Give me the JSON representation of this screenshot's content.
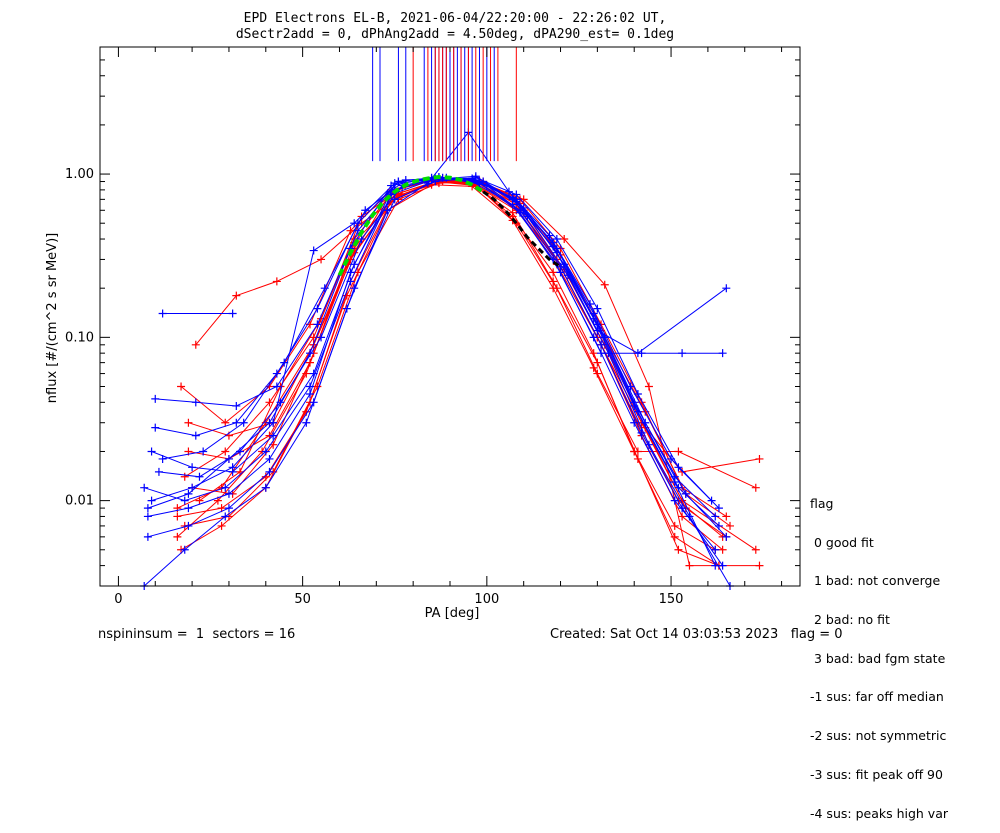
{
  "chart_data": {
    "type": "line",
    "title": "EPD Electrons EL-B, 2021-06-04/22:20:00 - 22:26:02 UT,",
    "subtitle": "dSectr2add = 0, dPhAng2add = 4.50deg, dPA290_est=   0.1deg",
    "xlabel": "PA [deg]",
    "ylabel": "nflux [#/(cm^2 s sr MeV)]",
    "xlim": [
      -5,
      185
    ],
    "ylim": [
      0.003,
      6.0
    ],
    "yscale": "log",
    "x_ticks": [
      0,
      50,
      100,
      150
    ],
    "y_ticks": [
      {
        "value": 0.01,
        "label": "0.01"
      },
      {
        "value": 0.1,
        "label": "0.10"
      },
      {
        "value": 1.0,
        "label": "1.00"
      }
    ],
    "grid": false,
    "series_colors": {
      "red": "#ff0000",
      "blue": "#0000ff",
      "fit_green": "#00dd00",
      "fit_black": "#000000"
    },
    "series": [
      {
        "color": "red",
        "x": [
          16,
          28,
          40,
          53,
          64,
          75,
          86,
          97,
          108,
          119,
          130,
          141,
          152,
          164
        ],
        "y": [
          0.009,
          0.012,
          0.03,
          0.09,
          0.35,
          0.75,
          0.9,
          0.85,
          0.6,
          0.3,
          0.1,
          0.03,
          0.01,
          0.006
        ]
      },
      {
        "color": "red",
        "x": [
          17,
          29,
          41,
          52,
          63,
          74,
          85,
          96,
          107,
          118,
          129,
          140,
          151,
          163
        ],
        "y": [
          0.05,
          0.03,
          0.05,
          0.12,
          0.45,
          0.8,
          0.92,
          0.88,
          0.55,
          0.25,
          0.08,
          0.02,
          0.006,
          0.004
        ]
      },
      {
        "color": "red",
        "x": [
          18,
          30,
          42,
          54,
          65,
          76,
          87,
          98,
          109,
          120,
          131,
          142,
          153,
          165
        ],
        "y": [
          0.007,
          0.008,
          0.015,
          0.05,
          0.25,
          0.7,
          0.88,
          0.9,
          0.7,
          0.35,
          0.12,
          0.04,
          0.012,
          0.008
        ]
      },
      {
        "color": "red",
        "x": [
          19,
          30,
          41,
          52,
          63,
          75,
          86,
          97,
          108,
          119,
          131,
          142,
          153,
          164
        ],
        "y": [
          0.02,
          0.018,
          0.025,
          0.07,
          0.3,
          0.72,
          0.9,
          0.86,
          0.62,
          0.28,
          0.09,
          0.025,
          0.008,
          0.005
        ]
      },
      {
        "color": "red",
        "x": [
          16,
          27,
          39,
          51,
          62,
          74,
          85,
          96,
          107,
          118,
          130,
          141,
          152,
          163
        ],
        "y": [
          0.006,
          0.01,
          0.02,
          0.06,
          0.28,
          0.78,
          0.93,
          0.87,
          0.58,
          0.22,
          0.07,
          0.018,
          0.005,
          0.004
        ]
      },
      {
        "color": "red",
        "x": [
          20,
          31,
          42,
          53,
          64,
          76,
          87,
          98,
          109,
          120,
          131,
          143,
          154,
          166
        ],
        "y": [
          0.012,
          0.011,
          0.022,
          0.08,
          0.38,
          0.74,
          0.89,
          0.91,
          0.66,
          0.32,
          0.11,
          0.035,
          0.011,
          0.007
        ]
      },
      {
        "color": "red",
        "x": [
          21,
          32,
          43,
          55,
          66,
          77,
          88,
          99,
          110,
          121,
          132,
          144,
          155,
          174
        ],
        "y": [
          0.09,
          0.18,
          0.22,
          0.3,
          0.5,
          0.75,
          0.9,
          0.88,
          0.7,
          0.4,
          0.21,
          0.05,
          0.004,
          0.004
        ]
      },
      {
        "color": "red",
        "x": [
          17,
          28,
          40,
          52,
          63,
          74,
          86,
          97,
          108,
          119,
          130,
          141,
          152,
          173
        ],
        "y": [
          0.005,
          0.007,
          0.012,
          0.04,
          0.22,
          0.68,
          0.9,
          0.86,
          0.5,
          0.2,
          0.06,
          0.02,
          0.02,
          0.012
        ]
      },
      {
        "color": "red",
        "x": [
          18,
          29,
          41,
          53,
          64,
          75,
          86,
          97,
          108,
          119,
          130,
          142,
          153,
          174
        ],
        "y": [
          0.014,
          0.02,
          0.04,
          0.1,
          0.4,
          0.8,
          0.92,
          0.9,
          0.65,
          0.3,
          0.1,
          0.03,
          0.015,
          0.018
        ]
      },
      {
        "color": "red",
        "x": [
          16,
          28,
          40,
          51,
          62,
          73,
          85,
          96,
          107,
          118,
          129,
          140,
          151,
          162
        ],
        "y": [
          0.008,
          0.009,
          0.014,
          0.035,
          0.18,
          0.6,
          0.86,
          0.84,
          0.52,
          0.2,
          0.065,
          0.02,
          0.007,
          0.005
        ]
      },
      {
        "color": "red",
        "x": [
          22,
          33,
          44,
          55,
          66,
          77,
          88,
          99,
          110,
          121,
          132,
          143,
          154,
          165
        ],
        "y": [
          0.01,
          0.015,
          0.05,
          0.13,
          0.55,
          0.82,
          0.94,
          0.9,
          0.6,
          0.26,
          0.09,
          0.028,
          0.009,
          0.006
        ]
      },
      {
        "color": "red",
        "x": [
          19,
          30,
          42,
          53,
          64,
          76,
          87,
          98,
          109,
          120,
          131,
          142,
          153,
          173
        ],
        "y": [
          0.03,
          0.025,
          0.03,
          0.09,
          0.33,
          0.76,
          0.91,
          0.87,
          0.6,
          0.27,
          0.09,
          0.03,
          0.01,
          0.005
        ]
      },
      {
        "color": "blue",
        "x": [
          8,
          19,
          30,
          41,
          52,
          63,
          74,
          85,
          96,
          107,
          118,
          129,
          140,
          151,
          162
        ],
        "y": [
          0.009,
          0.011,
          0.018,
          0.03,
          0.08,
          0.35,
          0.85,
          0.95,
          0.9,
          0.65,
          0.3,
          0.1,
          0.03,
          0.01,
          0.005
        ]
      },
      {
        "color": "blue",
        "x": [
          9,
          20,
          31,
          42,
          53,
          64,
          75,
          86,
          97,
          108,
          119,
          130,
          141,
          152,
          163
        ],
        "y": [
          0.02,
          0.016,
          0.015,
          0.025,
          0.06,
          0.28,
          0.8,
          0.94,
          0.92,
          0.7,
          0.35,
          0.12,
          0.035,
          0.012,
          0.007
        ]
      },
      {
        "color": "blue",
        "x": [
          12,
          31
        ],
        "y": [
          0.14,
          0.14
        ]
      },
      {
        "color": "blue",
        "x": [
          7,
          18,
          29,
          40,
          52,
          63,
          74,
          85,
          96,
          107,
          118,
          129,
          140,
          151,
          162
        ],
        "y": [
          0.012,
          0.01,
          0.012,
          0.02,
          0.05,
          0.22,
          0.75,
          0.92,
          0.93,
          0.72,
          0.38,
          0.14,
          0.04,
          0.014,
          0.008
        ]
      },
      {
        "color": "blue",
        "x": [
          10,
          21,
          32,
          43,
          54,
          65,
          76,
          87,
          98,
          109,
          120,
          131,
          142,
          153,
          164
        ],
        "y": [
          0.042,
          0.04,
          0.038,
          0.05,
          0.12,
          0.45,
          0.9,
          0.96,
          0.88,
          0.6,
          0.27,
          0.09,
          0.026,
          0.009,
          0.004
        ]
      },
      {
        "color": "blue",
        "x": [
          8,
          19,
          30,
          41,
          53,
          64,
          75,
          86,
          97,
          108,
          119,
          130,
          141,
          152,
          163
        ],
        "y": [
          0.006,
          0.007,
          0.009,
          0.015,
          0.04,
          0.2,
          0.7,
          0.9,
          0.95,
          0.75,
          0.4,
          0.15,
          0.045,
          0.016,
          0.009
        ]
      },
      {
        "color": "blue",
        "x": [
          11,
          22,
          33,
          44,
          55,
          66,
          77,
          88,
          99,
          110,
          121,
          132,
          143,
          154,
          165
        ],
        "y": [
          0.015,
          0.014,
          0.02,
          0.04,
          0.1,
          0.4,
          0.85,
          0.95,
          0.9,
          0.62,
          0.28,
          0.1,
          0.03,
          0.011,
          0.006
        ]
      },
      {
        "color": "blue",
        "x": [
          9,
          20,
          31,
          42,
          53,
          64,
          75,
          86,
          97,
          108,
          119,
          130,
          141,
          165
        ],
        "y": [
          0.01,
          0.012,
          0.016,
          0.03,
          0.34,
          0.5,
          0.88,
          0.93,
          0.97,
          0.68,
          0.33,
          0.11,
          0.08,
          0.2
        ]
      },
      {
        "color": "blue",
        "x": [
          7,
          18,
          29,
          40,
          51,
          62,
          73,
          84,
          95,
          106,
          117,
          128,
          139,
          150,
          161
        ],
        "y": [
          0.003,
          0.005,
          0.008,
          0.012,
          0.03,
          0.15,
          0.6,
          0.88,
          1.8,
          0.78,
          0.42,
          0.16,
          0.05,
          0.018,
          0.01
        ]
      },
      {
        "color": "blue",
        "x": [
          10,
          21,
          32,
          43,
          54,
          65,
          76,
          87,
          98,
          109,
          120,
          131,
          142,
          153,
          164
        ],
        "y": [
          0.028,
          0.025,
          0.03,
          0.06,
          0.15,
          0.5,
          0.9,
          0.96,
          0.89,
          0.58,
          0.25,
          0.08,
          0.08,
          0.08,
          0.08
        ]
      },
      {
        "color": "blue",
        "x": [
          8,
          19,
          30,
          41,
          52,
          63,
          74,
          85,
          96,
          107,
          118,
          129,
          140,
          151,
          162
        ],
        "y": [
          0.008,
          0.009,
          0.011,
          0.018,
          0.045,
          0.25,
          0.78,
          0.94,
          0.94,
          0.7,
          0.36,
          0.13,
          0.038,
          0.013,
          0.004
        ]
      },
      {
        "color": "blue",
        "x": [
          12,
          23,
          34,
          45,
          56,
          67,
          78,
          89,
          100,
          111,
          122,
          133,
          144,
          155,
          166
        ],
        "y": [
          0.018,
          0.02,
          0.03,
          0.07,
          0.2,
          0.6,
          0.92,
          0.95,
          0.85,
          0.55,
          0.24,
          0.08,
          0.022,
          0.008,
          0.003
        ]
      }
    ],
    "vertical_lines": {
      "y_bottom": 1.2,
      "red_x": [
        80,
        84,
        86,
        87,
        88,
        89,
        91,
        93,
        95,
        97,
        99,
        101,
        103,
        108
      ],
      "blue_x": [
        69,
        71,
        76,
        78,
        83,
        85,
        86,
        87,
        88,
        89,
        90,
        91,
        92,
        93,
        94,
        95,
        96,
        98,
        100,
        102
      ]
    },
    "fit_curve": {
      "green_x": [
        60,
        63,
        66,
        69,
        72,
        75,
        78,
        81,
        84,
        87,
        90,
        93,
        96,
        99
      ],
      "green_y": [
        0.24,
        0.33,
        0.44,
        0.56,
        0.68,
        0.78,
        0.86,
        0.91,
        0.94,
        0.96,
        0.95,
        0.92,
        0.86,
        0.78
      ],
      "black_x": [
        99,
        102,
        105,
        108,
        111,
        114,
        117,
        120
      ],
      "black_y": [
        0.78,
        0.7,
        0.6,
        0.5,
        0.41,
        0.35,
        0.3,
        0.27
      ]
    }
  },
  "legend": {
    "title": "flag",
    "items": [
      " 0 good fit",
      " 1 bad: not converge",
      " 2 bad: no fit",
      " 3 bad: bad fgm state",
      "-1 sus: far off median",
      "-2 sus: not symmetric",
      "-3 sus: fit peak off 90",
      "-4 sus: peaks high var"
    ]
  },
  "footer": {
    "left": "nspininsum =  1  sectors = 16",
    "right": "Created: Sat Oct 14 03:03:53 2023   flag = 0"
  }
}
